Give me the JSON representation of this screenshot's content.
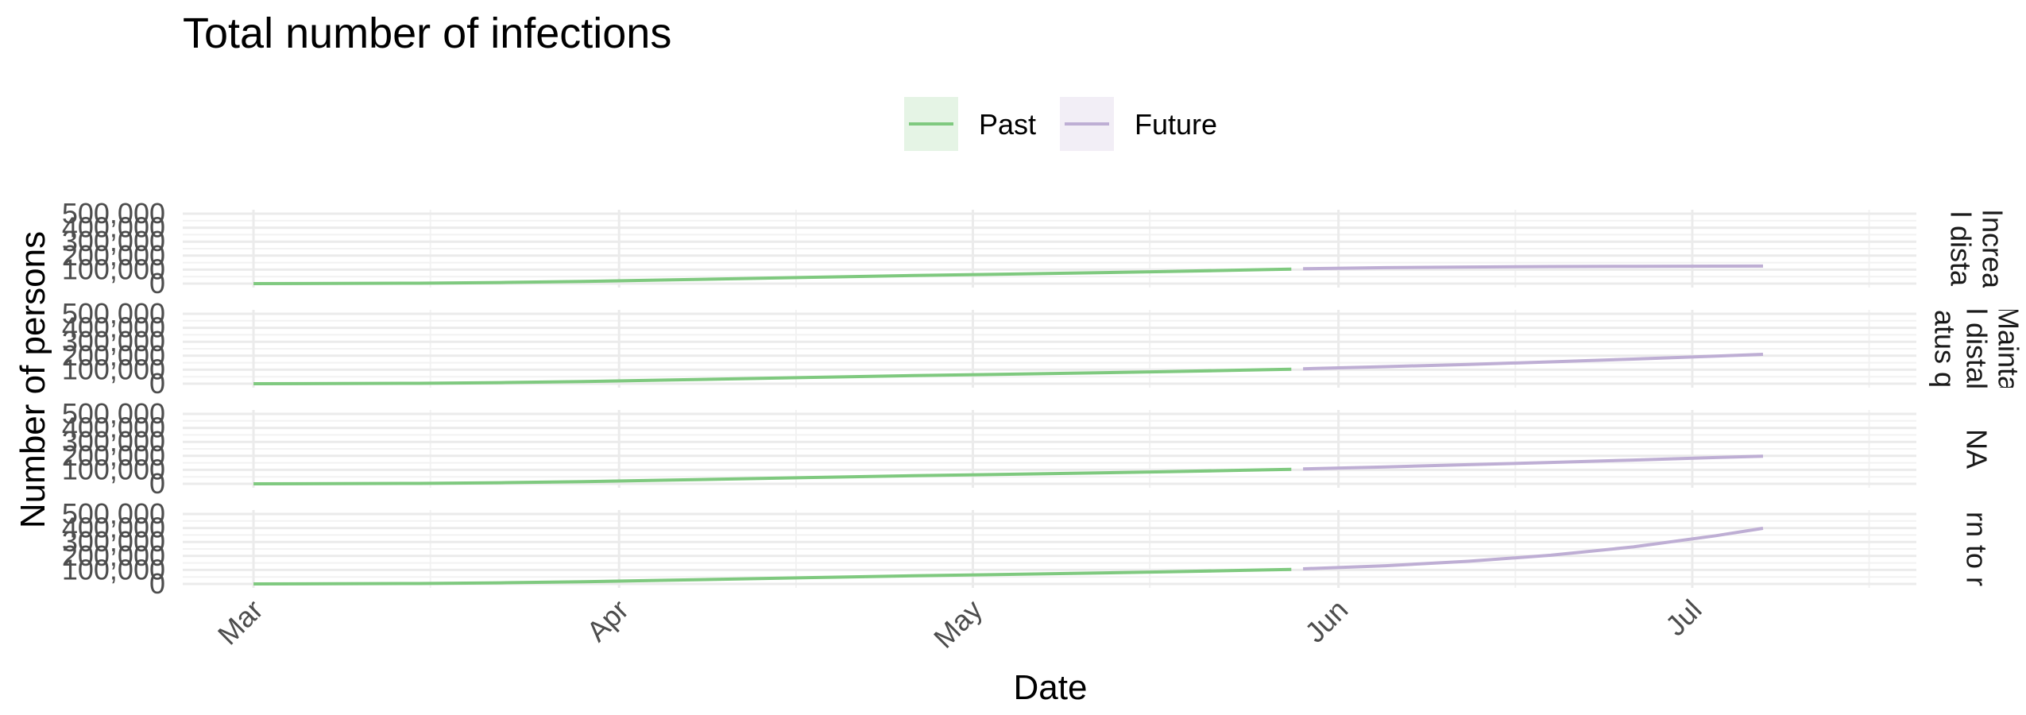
{
  "chart_data": {
    "type": "line",
    "title": "Total number of infections",
    "xlabel": "Date",
    "ylabel": "Number of persons",
    "x_range": [
      "2020-02-24",
      "2020-07-20"
    ],
    "x_ticks": [
      {
        "date": "2020-03-01",
        "label": "Mar"
      },
      {
        "date": "2020-04-01",
        "label": "Apr"
      },
      {
        "date": "2020-05-01",
        "label": "May"
      },
      {
        "date": "2020-06-01",
        "label": "Jun"
      },
      {
        "date": "2020-07-01",
        "label": "Jul"
      }
    ],
    "ylim": [
      0,
      500000
    ],
    "y_ticks": [
      {
        "value": 0,
        "label": "0"
      },
      {
        "value": 100000,
        "label": "100,000"
      },
      {
        "value": 200000,
        "label": "200,000"
      },
      {
        "value": 300000,
        "label": "300,000"
      },
      {
        "value": 400000,
        "label": "400,000"
      },
      {
        "value": 500000,
        "label": "500,000"
      }
    ],
    "grid": true,
    "legend": {
      "position": "top",
      "entries": [
        {
          "name": "Past",
          "color": "#7fc97f",
          "key_fill": "#e5f4e5"
        },
        {
          "name": "Future",
          "color": "#beaed4",
          "key_fill": "#f2eef6"
        }
      ]
    },
    "panels": [
      {
        "strip_lines": [
          "Increa",
          "l dista"
        ],
        "series": [
          {
            "name": "Past",
            "color": "#7fc97f",
            "points": [
              [
                "2020-03-01",
                0
              ],
              [
                "2020-03-08",
                1000
              ],
              [
                "2020-03-15",
                3000
              ],
              [
                "2020-03-22",
                8000
              ],
              [
                "2020-03-29",
                16000
              ],
              [
                "2020-04-05",
                26000
              ],
              [
                "2020-04-12",
                37000
              ],
              [
                "2020-04-19",
                48000
              ],
              [
                "2020-04-26",
                58000
              ],
              [
                "2020-05-03",
                67000
              ],
              [
                "2020-05-10",
                76000
              ],
              [
                "2020-05-17",
                86000
              ],
              [
                "2020-05-24",
                97000
              ],
              [
                "2020-05-28",
                104000
              ]
            ]
          },
          {
            "name": "Future",
            "color": "#beaed4",
            "points": [
              [
                "2020-05-29",
                106000
              ],
              [
                "2020-06-05",
                114000
              ],
              [
                "2020-06-12",
                119000
              ],
              [
                "2020-06-19",
                122000
              ],
              [
                "2020-06-26",
                124000
              ],
              [
                "2020-07-03",
                125000
              ],
              [
                "2020-07-07",
                125500
              ]
            ]
          }
        ]
      },
      {
        "strip_lines": [
          "Mainta",
          "l distal",
          "atus q"
        ],
        "series": [
          {
            "name": "Past",
            "color": "#7fc97f",
            "points": [
              [
                "2020-03-01",
                0
              ],
              [
                "2020-03-08",
                1000
              ],
              [
                "2020-03-15",
                3000
              ],
              [
                "2020-03-22",
                8000
              ],
              [
                "2020-03-29",
                16000
              ],
              [
                "2020-04-05",
                26000
              ],
              [
                "2020-04-12",
                37000
              ],
              [
                "2020-04-19",
                48000
              ],
              [
                "2020-04-26",
                58000
              ],
              [
                "2020-05-03",
                67000
              ],
              [
                "2020-05-10",
                76000
              ],
              [
                "2020-05-17",
                86000
              ],
              [
                "2020-05-24",
                97000
              ],
              [
                "2020-05-28",
                104000
              ]
            ]
          },
          {
            "name": "Future",
            "color": "#beaed4",
            "points": [
              [
                "2020-05-29",
                107000
              ],
              [
                "2020-06-05",
                122000
              ],
              [
                "2020-06-12",
                138000
              ],
              [
                "2020-06-19",
                156000
              ],
              [
                "2020-06-26",
                176000
              ],
              [
                "2020-07-03",
                198000
              ],
              [
                "2020-07-07",
                210000
              ]
            ]
          }
        ]
      },
      {
        "strip_lines": [
          "NA"
        ],
        "series": [
          {
            "name": "Past",
            "color": "#7fc97f",
            "points": [
              [
                "2020-03-01",
                0
              ],
              [
                "2020-03-08",
                1000
              ],
              [
                "2020-03-15",
                3000
              ],
              [
                "2020-03-22",
                8000
              ],
              [
                "2020-03-29",
                16000
              ],
              [
                "2020-04-05",
                26000
              ],
              [
                "2020-04-12",
                37000
              ],
              [
                "2020-04-19",
                48000
              ],
              [
                "2020-04-26",
                58000
              ],
              [
                "2020-05-03",
                67000
              ],
              [
                "2020-05-10",
                76000
              ],
              [
                "2020-05-17",
                86000
              ],
              [
                "2020-05-24",
                97000
              ],
              [
                "2020-05-28",
                104000
              ]
            ]
          },
          {
            "name": "Future",
            "color": "#beaed4",
            "points": [
              [
                "2020-05-29",
                106000
              ],
              [
                "2020-06-05",
                121000
              ],
              [
                "2020-06-12",
                137000
              ],
              [
                "2020-06-19",
                153000
              ],
              [
                "2020-06-26",
                170000
              ],
              [
                "2020-07-03",
                188000
              ],
              [
                "2020-07-07",
                197000
              ]
            ]
          }
        ]
      },
      {
        "strip_lines": [
          "rn to r"
        ],
        "series": [
          {
            "name": "Past",
            "color": "#7fc97f",
            "points": [
              [
                "2020-03-01",
                0
              ],
              [
                "2020-03-08",
                1000
              ],
              [
                "2020-03-15",
                3000
              ],
              [
                "2020-03-22",
                8000
              ],
              [
                "2020-03-29",
                16000
              ],
              [
                "2020-04-05",
                26000
              ],
              [
                "2020-04-12",
                37000
              ],
              [
                "2020-04-19",
                48000
              ],
              [
                "2020-04-26",
                58000
              ],
              [
                "2020-05-03",
                67000
              ],
              [
                "2020-05-10",
                76000
              ],
              [
                "2020-05-17",
                86000
              ],
              [
                "2020-05-24",
                97000
              ],
              [
                "2020-05-28",
                104000
              ]
            ]
          },
          {
            "name": "Future",
            "color": "#beaed4",
            "points": [
              [
                "2020-05-29",
                108000
              ],
              [
                "2020-06-05",
                130000
              ],
              [
                "2020-06-12",
                162000
              ],
              [
                "2020-06-19",
                205000
              ],
              [
                "2020-06-26",
                265000
              ],
              [
                "2020-07-03",
                345000
              ],
              [
                "2020-07-07",
                398000
              ]
            ]
          }
        ]
      }
    ]
  }
}
